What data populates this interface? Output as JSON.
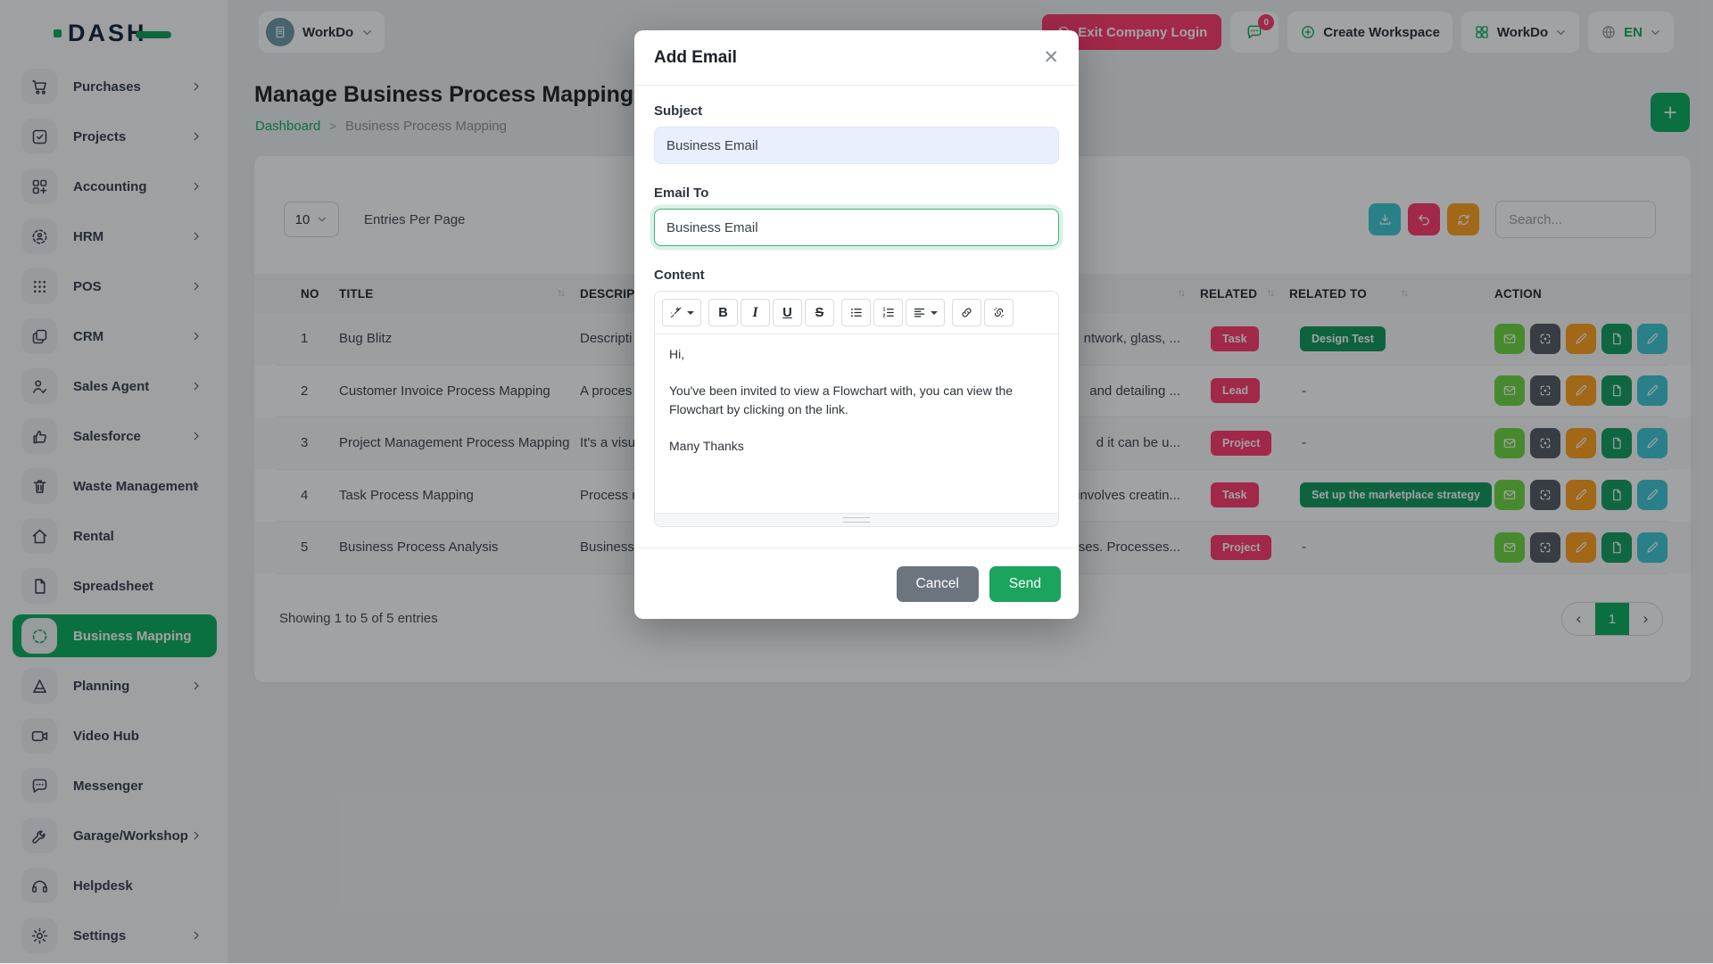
{
  "brand": {
    "logo_text": "DASH"
  },
  "sidebar": {
    "items": [
      {
        "label": "Purchases",
        "icon": "cart-icon",
        "chevron": true,
        "active": false
      },
      {
        "label": "Projects",
        "icon": "check-square-icon",
        "chevron": true,
        "active": false
      },
      {
        "label": "Accounting",
        "icon": "grid-plus-icon",
        "chevron": true,
        "active": false
      },
      {
        "label": "HRM",
        "icon": "user-scan-icon",
        "chevron": true,
        "active": false
      },
      {
        "label": "POS",
        "icon": "dots-grid-icon",
        "chevron": true,
        "active": false
      },
      {
        "label": "CRM",
        "icon": "cards-icon",
        "chevron": true,
        "active": false
      },
      {
        "label": "Sales Agent",
        "icon": "user-check-icon",
        "chevron": true,
        "active": false
      },
      {
        "label": "Salesforce",
        "icon": "thumbs-up-icon",
        "chevron": true,
        "active": false
      },
      {
        "label": "Waste Management",
        "icon": "trash-icon",
        "chevron": true,
        "active": false
      },
      {
        "label": "Rental",
        "icon": "home-icon",
        "chevron": false,
        "active": false
      },
      {
        "label": "Spreadsheet",
        "icon": "file-icon",
        "chevron": false,
        "active": false
      },
      {
        "label": "Business Mapping",
        "icon": "circle-dashed-icon",
        "chevron": false,
        "active": true
      },
      {
        "label": "Planning",
        "icon": "triangle-icon",
        "chevron": true,
        "active": false
      },
      {
        "label": "Video Hub",
        "icon": "video-icon",
        "chevron": false,
        "active": false
      },
      {
        "label": "Messenger",
        "icon": "chat-icon",
        "chevron": false,
        "active": false
      },
      {
        "label": "Garage/Workshop",
        "icon": "wrench-icon",
        "chevron": true,
        "active": false
      },
      {
        "label": "Helpdesk",
        "icon": "headset-icon",
        "chevron": false,
        "active": false
      },
      {
        "label": "Settings",
        "icon": "gear-icon",
        "chevron": true,
        "active": false
      }
    ]
  },
  "topbar": {
    "workspace_name": "WorkDo",
    "exit_label": "Exit Company Login",
    "chat_badge": "0",
    "create_workspace_label": "Create Workspace",
    "app_switcher_label": "WorkDo",
    "language": "EN"
  },
  "page": {
    "title": "Manage Business Process Mapping",
    "breadcrumb_home": "Dashboard",
    "breadcrumb_sep": ">",
    "breadcrumb_current": "Business Process Mapping"
  },
  "controls": {
    "entries_value": "10",
    "entries_label": "Entries Per Page",
    "search_placeholder": "Search..."
  },
  "table": {
    "headers": {
      "no": "NO",
      "title": "TITLE",
      "description": "DESCRIPTION",
      "related": "RELATED",
      "related_to": "RELATED TO",
      "action": "ACTION"
    },
    "sort_glyph": "↑↓",
    "rows": [
      {
        "no": "1",
        "title": "Bug Blitz",
        "desc_left": "Descripti",
        "desc_right": "ntwork, glass, ...",
        "related": "Task",
        "related_to": "Design Test"
      },
      {
        "no": "2",
        "title": "Customer Invoice Process Mapping",
        "desc_left": "A proces",
        "desc_right": "and detailing ...",
        "related": "Lead",
        "related_to": "-"
      },
      {
        "no": "3",
        "title": "Project Management Process Mapping",
        "desc_left": "It's a visu",
        "desc_right": "d it can be u...",
        "related": "Project",
        "related_to": "-"
      },
      {
        "no": "4",
        "title": "Task Process Mapping",
        "desc_left": "Process r",
        "desc_right": "involves creatin...",
        "related": "Task",
        "related_to": "Set up the marketplace strategy"
      },
      {
        "no": "5",
        "title": "Business Process Analysis",
        "desc_left": "Business",
        "desc_right": "esses. Processes...",
        "related": "Project",
        "related_to": "-"
      }
    ]
  },
  "table_footer": {
    "showing": "Showing 1 to 5 of 5 entries",
    "prev": "‹",
    "page": "1",
    "next": "›"
  },
  "modal": {
    "title": "Add Email",
    "close_glyph": "✕",
    "subject_label": "Subject",
    "subject_value": "Business Email",
    "email_to_label": "Email To",
    "email_to_value": "Business Email",
    "content_label": "Content",
    "toolbar_glyphs": {
      "bold": "B",
      "italic": "I",
      "underline": "U",
      "strike": "S"
    },
    "editor": {
      "greeting": "Hi,",
      "body": "You've been invited to view a Flowchart with, you can view the Flowchart by clicking on the link.",
      "signoff": "Many Thanks"
    },
    "cancel_label": "Cancel",
    "send_label": "Send"
  },
  "colors": {
    "primary_green": "#0eaf60",
    "danger_pink": "#ff3a6e",
    "warning_amber": "#ffa21d",
    "info_teal": "#3ec9d6",
    "lime_green": "#6fd943",
    "badge_green": "#129a5e",
    "secondary_gray": "#6c757d"
  }
}
